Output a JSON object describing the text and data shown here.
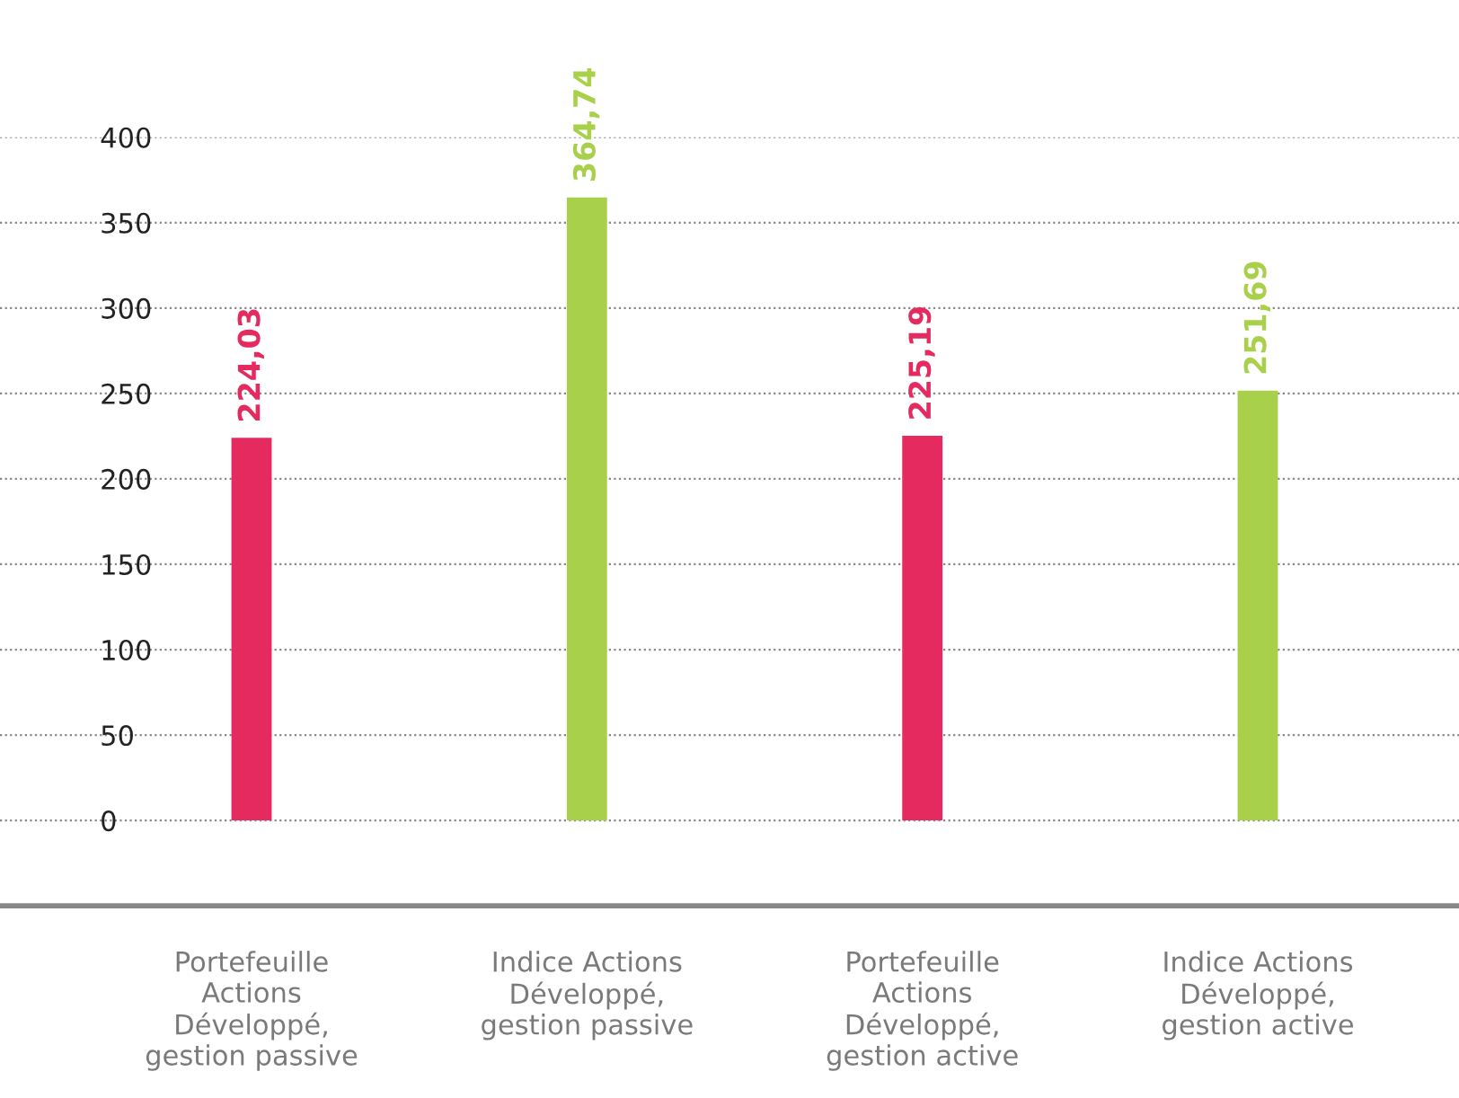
{
  "chart_data": {
    "type": "bar",
    "categories": [
      "Portefeuille\nActions\nDéveloppé,\ngestion passive",
      "Indice Actions\nDéveloppé,\ngestion passive",
      "Portefeuille\nActions\nDéveloppé,\ngestion active",
      "Indice Actions\nDéveloppé,\ngestion active"
    ],
    "values": [
      224.03,
      364.74,
      225.19,
      251.69
    ],
    "colors": [
      "#e42a5e",
      "#a9d04b",
      "#e42a5e",
      "#a9d04b"
    ],
    "value_labels": [
      "224,03",
      "364,74",
      "225,19",
      "251,69"
    ],
    "ylim": [
      -50,
      400
    ],
    "yticks": [
      0,
      50,
      100,
      150,
      200,
      250,
      300,
      350,
      400
    ],
    "grid": "y"
  }
}
